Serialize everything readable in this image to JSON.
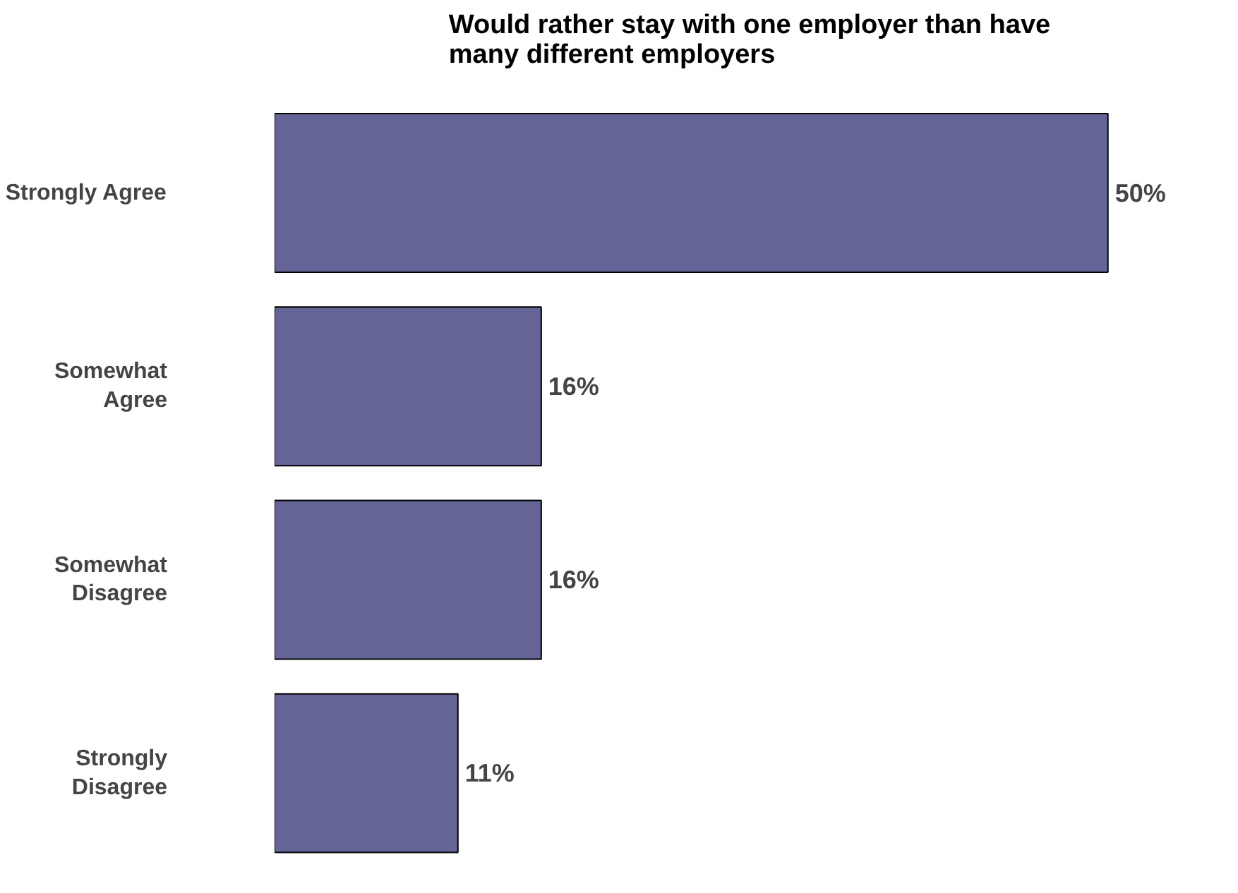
{
  "chart_data": {
    "type": "bar",
    "orientation": "horizontal",
    "title": "Would rather stay with one employer than have\nmany different employers",
    "categories": [
      "Strongly Agree",
      "Somewhat\nAgree",
      "Somewhat\nDisagree",
      "Strongly\nDisagree"
    ],
    "values": [
      50,
      16,
      16,
      11
    ],
    "color": "#646496",
    "data_labels": true,
    "value_labels": [
      "50%",
      "16%",
      "16%",
      "11%"
    ],
    "grid": false
  }
}
